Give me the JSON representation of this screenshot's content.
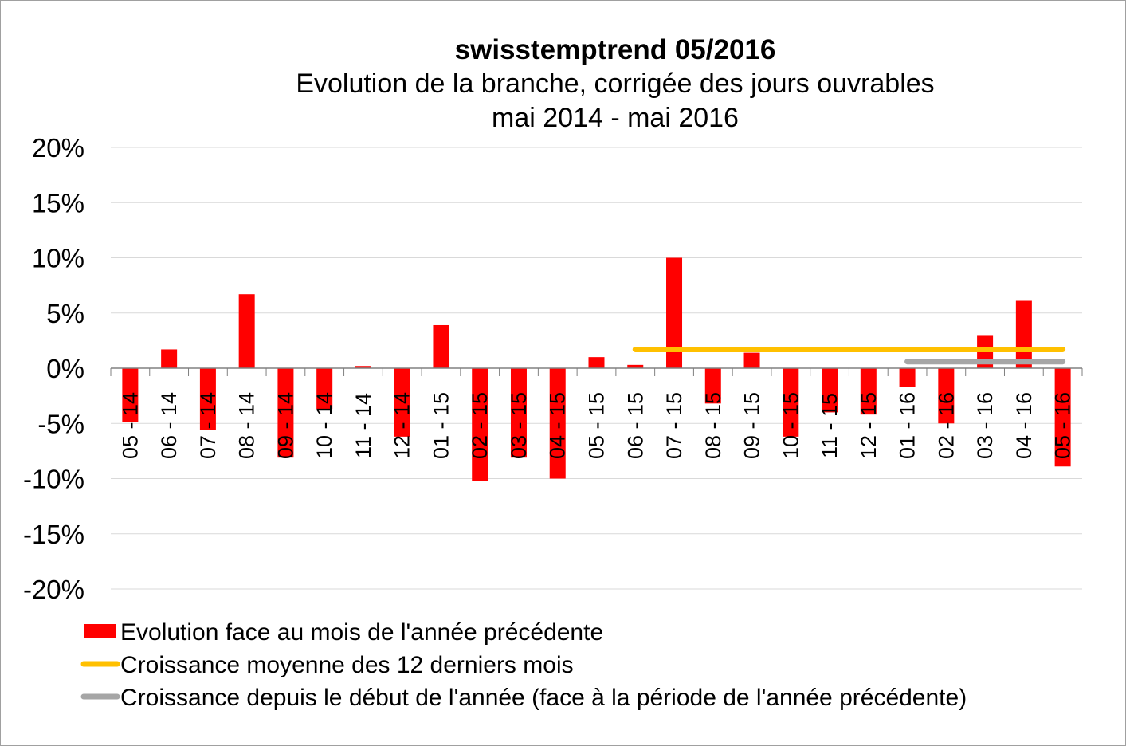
{
  "chart_data": {
    "type": "bar",
    "title": "swisstemptrend 05/2016",
    "subtitle": "Evolution de la branche, corrigée des jours ouvrables",
    "subtitle2": "mai 2014 - mai 2016",
    "categories": [
      "05 - 14",
      "06 - 14",
      "07 - 14",
      "08 - 14",
      "09 - 14",
      "10 - 14",
      "11 - 14",
      "12 - 14",
      "01 - 15",
      "02 - 15",
      "03 - 15",
      "04 - 15",
      "05 - 15",
      "06 - 15",
      "07 - 15",
      "08 - 15",
      "09 - 15",
      "10 - 15",
      "11 - 15",
      "12 - 15",
      "01 - 16",
      "02 - 16",
      "03 - 16",
      "04 - 16",
      "05 - 16"
    ],
    "ylim": [
      -20,
      20
    ],
    "yticks": [
      20,
      15,
      10,
      5,
      0,
      -5,
      -10,
      -15,
      -20
    ],
    "ytick_labels": [
      "20%",
      "15%",
      "10%",
      "5%",
      "0%",
      "-5%",
      "-10%",
      "-15%",
      "-20%"
    ],
    "grid": true,
    "legend_position": "bottom-left",
    "series": [
      {
        "name": "Evolution face au mois de l'année précédente",
        "kind": "bar",
        "color": "#ff0000",
        "values": [
          -4.9,
          1.7,
          -5.6,
          6.7,
          -8.1,
          -3.7,
          0.2,
          -6.2,
          3.9,
          -10.2,
          -8.1,
          -10.0,
          1.0,
          0.3,
          10.0,
          -3.2,
          1.4,
          -6.2,
          -4.0,
          -4.2,
          -1.7,
          -5.0,
          3.0,
          6.1,
          -8.9
        ]
      },
      {
        "name": "Croissance moyenne des 12 derniers mois",
        "kind": "line",
        "color": "#ffc000",
        "value": 1.7,
        "from": "06 - 15",
        "to": "05 - 16"
      },
      {
        "name": "Croissance depuis le début de l'année (face à la période de l'année précédente)",
        "kind": "line",
        "color": "#a6a6a6",
        "value": 0.6,
        "from": "01 - 16",
        "to": "05 - 16"
      }
    ]
  }
}
